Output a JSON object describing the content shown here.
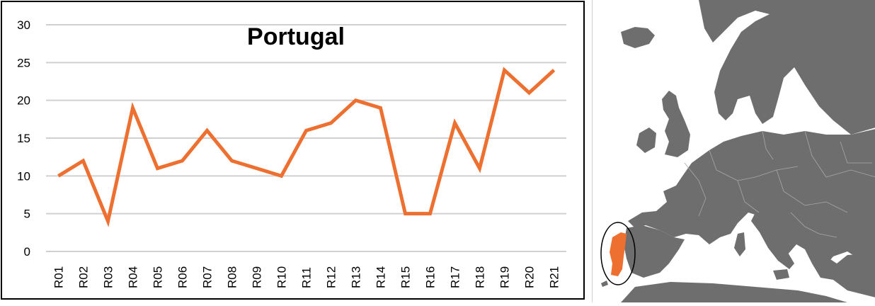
{
  "chart_data": {
    "type": "line",
    "title": "Portugal",
    "xlabel": "",
    "ylabel": "",
    "categories": [
      "R01",
      "R02",
      "R03",
      "R04",
      "R05",
      "R06",
      "R07",
      "R08",
      "R09",
      "R10",
      "R11",
      "R12",
      "R13",
      "R14",
      "R15",
      "R16",
      "R17",
      "R18",
      "R19",
      "R20",
      "R21"
    ],
    "series": [
      {
        "values": [
          10,
          12,
          4,
          19,
          11,
          12,
          16,
          12,
          11,
          10,
          16,
          17,
          20,
          19,
          5,
          5,
          17,
          11,
          24,
          21,
          24
        ]
      }
    ],
    "ylim": [
      0,
      30
    ],
    "yticks": [
      0,
      5,
      10,
      15,
      20,
      25,
      30
    ],
    "grid": true,
    "legend": "none",
    "line_color": "#ED7030"
  },
  "map": {
    "highlight_country": "Portugal",
    "highlight_color": "#ED7030",
    "land_color": "#6E6E6E",
    "sea_color": "#FFFFFF"
  }
}
